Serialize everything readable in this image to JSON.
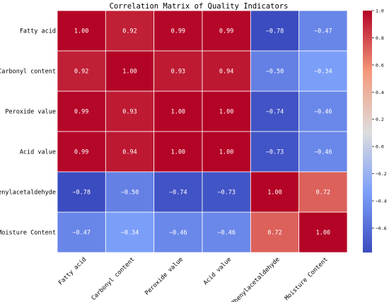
{
  "chart_data": {
    "type": "heatmap",
    "title": "Correlation Matrix of Quality Indicators",
    "rows": [
      "Fatty acid",
      "Carbonyl content",
      "Peroxide value",
      "Acid value",
      "Phenylacetaldehyde",
      "Moisture Content"
    ],
    "cols": [
      "Fatty acid",
      "Carbonyl content",
      "Peroxide value",
      "Acid value",
      "Phenylacetaldehyde",
      "Moisture Content"
    ],
    "values": [
      [
        1.0,
        0.92,
        0.99,
        0.99,
        -0.78,
        -0.47
      ],
      [
        0.92,
        1.0,
        0.93,
        0.94,
        -0.5,
        -0.34
      ],
      [
        0.99,
        0.93,
        1.0,
        1.0,
        -0.74,
        -0.46
      ],
      [
        0.99,
        0.94,
        1.0,
        1.0,
        -0.73,
        -0.46
      ],
      [
        -0.78,
        -0.5,
        -0.74,
        -0.73,
        1.0,
        0.72
      ],
      [
        -0.47,
        -0.34,
        -0.46,
        -0.46,
        0.72,
        1.0
      ]
    ],
    "value_labels": [
      [
        "1.00",
        "0.92",
        "0.99",
        "0.99",
        "−0.78",
        "−0.47"
      ],
      [
        "0.92",
        "1.00",
        "0.93",
        "0.94",
        "−0.50",
        "−0.34"
      ],
      [
        "0.99",
        "0.93",
        "1.00",
        "1.00",
        "−0.74",
        "−0.46"
      ],
      [
        "0.99",
        "0.94",
        "1.00",
        "1.00",
        "−0.73",
        "−0.46"
      ],
      [
        "−0.78",
        "−0.50",
        "−0.74",
        "−0.73",
        "1.00",
        "0.72"
      ],
      [
        "−0.47",
        "−0.34",
        "−0.46",
        "−0.46",
        "0.72",
        "1.00"
      ]
    ],
    "colorbar": {
      "colormap": "coolwarm",
      "vmin": -0.78,
      "vmax": 1.0,
      "ticks": [
        -0.6,
        -0.4,
        -0.2,
        0.0,
        0.2,
        0.4,
        0.6,
        0.8,
        1.0
      ],
      "tick_labels": [
        "−0.6",
        "−0.4",
        "−0.2",
        "0.0",
        "0.2",
        "0.4",
        "0.6",
        "0.8",
        "1.0"
      ]
    },
    "grid": true,
    "cell_border_color": "#ffffff"
  }
}
